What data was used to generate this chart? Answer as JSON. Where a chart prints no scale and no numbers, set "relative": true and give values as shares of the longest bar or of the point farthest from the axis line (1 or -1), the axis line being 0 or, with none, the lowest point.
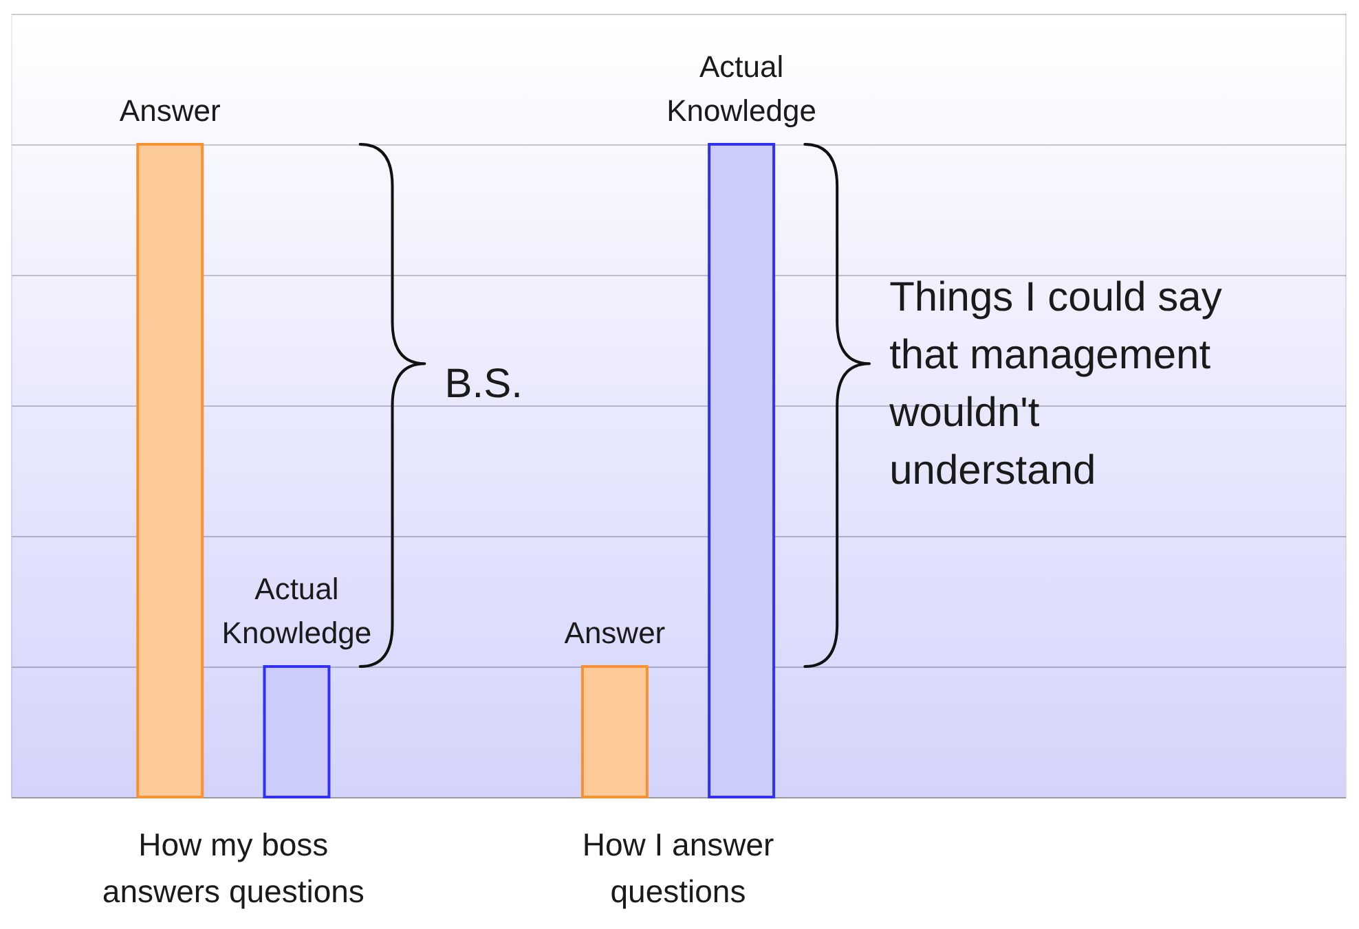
{
  "chart_data": {
    "type": "bar",
    "relative": true,
    "grid": "y",
    "categories": [
      "How my boss answers questions",
      "How I answer questions",
      null
    ],
    "series": [
      {
        "name": "Answer",
        "color": "#fdca99",
        "values": [
          1,
          0.2,
          null
        ]
      },
      {
        "name": "Actual Knowledge",
        "color": "#ccccfa",
        "values": [
          0.2,
          1,
          null
        ]
      }
    ],
    "annotations": [
      "B.S.",
      "Things I could say that management wouldn't understand"
    ]
  }
}
